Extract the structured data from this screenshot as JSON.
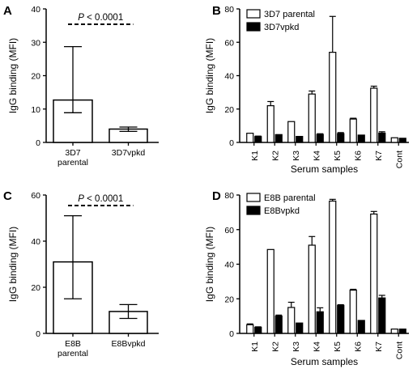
{
  "chart_data": [
    {
      "panel": "A",
      "type": "bar",
      "ylabel": "IgG binding (MFI)",
      "xlabel": "",
      "ylim": [
        0,
        40
      ],
      "yticks": [
        0,
        10,
        20,
        30,
        40
      ],
      "categories": [
        [
          "3D7",
          "parental"
        ],
        [
          "3D7vpkd"
        ]
      ],
      "series": [
        {
          "values": [
            12.7,
            4.0
          ],
          "err_low": [
            8.9,
            3.3
          ],
          "err_high": [
            28.7,
            4.6
          ]
        }
      ],
      "annotation": {
        "italic": "P",
        "rest": " < 0.0001"
      }
    },
    {
      "panel": "B",
      "type": "bar",
      "ylabel": "IgG binding (MFI)",
      "xlabel": "Serum samples",
      "ylim": [
        0,
        80
      ],
      "yticks": [
        0,
        20,
        40,
        60,
        80
      ],
      "categories": [
        "K1",
        "K2",
        "K3",
        "K4",
        "K5",
        "K6",
        "K7",
        "Cont"
      ],
      "series": [
        {
          "name": "3D7 parental",
          "fill": "#ffffff",
          "values": [
            5.5,
            22,
            12.5,
            29,
            54,
            14,
            32.5,
            2.8
          ],
          "err": [
            0,
            2.5,
            0,
            1.8,
            21.5,
            0.5,
            1.2,
            0
          ]
        },
        {
          "name": "3D7vpkd",
          "fill": "#000000",
          "values": [
            3.5,
            4.7,
            3.6,
            4.8,
            5.3,
            4.4,
            5.6,
            2.5
          ],
          "err": [
            0.3,
            0,
            0,
            0.4,
            0.6,
            0,
            0.8,
            0
          ]
        }
      ],
      "legend_position": "top-left"
    },
    {
      "panel": "C",
      "type": "bar",
      "ylabel": "IgG binding (MFI)",
      "xlabel": "",
      "ylim": [
        0,
        60
      ],
      "yticks": [
        0,
        20,
        40,
        60
      ],
      "categories": [
        [
          "E8B",
          "parental"
        ],
        [
          "E8Bvpkd"
        ]
      ],
      "series": [
        {
          "values": [
            31,
            9.5
          ],
          "err_low": [
            15,
            6.5
          ],
          "err_high": [
            51,
            12.5
          ]
        }
      ],
      "annotation": {
        "italic": "P",
        "rest": " < 0.0001"
      }
    },
    {
      "panel": "D",
      "type": "bar",
      "ylabel": "IgG binding (MFI)",
      "xlabel": "Serum samples",
      "ylim": [
        0,
        80
      ],
      "yticks": [
        0,
        20,
        40,
        60,
        80
      ],
      "categories": [
        "K1",
        "K2",
        "K3",
        "K4",
        "K5",
        "K6",
        "K7",
        "Cont"
      ],
      "series": [
        {
          "name": "E8B parental",
          "fill": "#ffffff",
          "values": [
            5,
            48.5,
            15,
            51,
            76.5,
            25,
            69,
            2.5
          ],
          "err": [
            0.5,
            0,
            3,
            5,
            1,
            0.5,
            1.5,
            0
          ]
        },
        {
          "name": "E8Bvpkd",
          "fill": "#000000",
          "values": [
            3.5,
            10,
            6,
            12.5,
            16.2,
            7.5,
            20.5,
            2.5
          ],
          "err": [
            0.3,
            0.6,
            0,
            2.3,
            0.4,
            0,
            1.5,
            0
          ]
        }
      ],
      "legend_position": "top-left"
    }
  ]
}
